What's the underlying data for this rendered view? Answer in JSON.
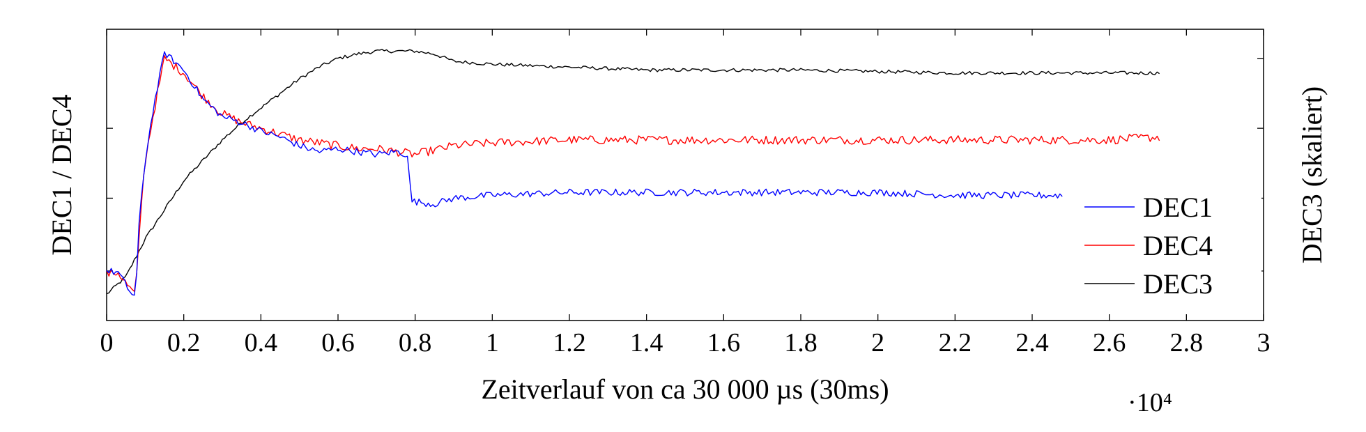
{
  "chart_data": {
    "type": "line",
    "title": "",
    "xlabel": "Zeitverlauf von ca 30 000 µs (30ms)",
    "ylabel_left": "DEC1 / DEC4",
    "ylabel_right": "DEC3 (skaliert)",
    "x_multiplier": "·10⁴",
    "xlim": [
      0,
      3
    ],
    "ylim": [
      0,
      1
    ],
    "x_ticks": [
      "0",
      "0.2",
      "0.4",
      "0.6",
      "0.8",
      "1",
      "1.2",
      "1.4",
      "1.6",
      "1.8",
      "2",
      "2.2",
      "2.4",
      "2.6",
      "2.8",
      "3"
    ],
    "y_ticks_left": [
      0.17,
      0.42,
      0.66
    ],
    "y_ticks_right": [
      0.17,
      0.42,
      0.66,
      0.9
    ],
    "grid": false,
    "legend_position": "bottom-right",
    "series": [
      {
        "name": "DEC1",
        "color": "#0000ff",
        "points": [
          [
            0,
            0.17
          ],
          [
            0.03,
            0.165
          ],
          [
            0.06,
            0.1
          ],
          [
            0.075,
            0.08
          ],
          [
            0.085,
            0.35
          ],
          [
            0.1,
            0.55
          ],
          [
            0.12,
            0.72
          ],
          [
            0.15,
            0.92
          ],
          [
            0.2,
            0.86
          ],
          [
            0.25,
            0.76
          ],
          [
            0.3,
            0.7
          ],
          [
            0.35,
            0.68
          ],
          [
            0.4,
            0.65
          ],
          [
            0.45,
            0.63
          ],
          [
            0.5,
            0.6
          ],
          [
            0.55,
            0.58
          ],
          [
            0.6,
            0.59
          ],
          [
            0.65,
            0.58
          ],
          [
            0.7,
            0.57
          ],
          [
            0.75,
            0.58
          ],
          [
            0.78,
            0.57
          ],
          [
            0.79,
            0.41
          ],
          [
            0.85,
            0.4
          ],
          [
            0.9,
            0.42
          ],
          [
            1.0,
            0.43
          ],
          [
            1.2,
            0.44
          ],
          [
            1.4,
            0.44
          ],
          [
            1.6,
            0.44
          ],
          [
            1.8,
            0.44
          ],
          [
            2.0,
            0.44
          ],
          [
            2.2,
            0.43
          ],
          [
            2.4,
            0.43
          ],
          [
            2.48,
            0.43
          ]
        ],
        "noise": 0.012
      },
      {
        "name": "DEC4",
        "color": "#ff0000",
        "points": [
          [
            0,
            0.16
          ],
          [
            0.03,
            0.165
          ],
          [
            0.06,
            0.11
          ],
          [
            0.075,
            0.09
          ],
          [
            0.09,
            0.4
          ],
          [
            0.1,
            0.55
          ],
          [
            0.12,
            0.7
          ],
          [
            0.15,
            0.9
          ],
          [
            0.2,
            0.85
          ],
          [
            0.25,
            0.77
          ],
          [
            0.3,
            0.71
          ],
          [
            0.35,
            0.68
          ],
          [
            0.4,
            0.66
          ],
          [
            0.45,
            0.64
          ],
          [
            0.5,
            0.62
          ],
          [
            0.55,
            0.61
          ],
          [
            0.6,
            0.6
          ],
          [
            0.65,
            0.59
          ],
          [
            0.7,
            0.59
          ],
          [
            0.75,
            0.58
          ],
          [
            0.8,
            0.57
          ],
          [
            0.9,
            0.6
          ],
          [
            1.0,
            0.61
          ],
          [
            1.2,
            0.62
          ],
          [
            1.4,
            0.62
          ],
          [
            1.6,
            0.62
          ],
          [
            1.8,
            0.62
          ],
          [
            2.0,
            0.62
          ],
          [
            2.2,
            0.62
          ],
          [
            2.4,
            0.62
          ],
          [
            2.6,
            0.62
          ],
          [
            2.73,
            0.63
          ]
        ],
        "noise": 0.015
      },
      {
        "name": "DEC3",
        "color": "#000000",
        "points": [
          [
            0,
            0.09
          ],
          [
            0.05,
            0.15
          ],
          [
            0.1,
            0.28
          ],
          [
            0.15,
            0.38
          ],
          [
            0.2,
            0.48
          ],
          [
            0.25,
            0.55
          ],
          [
            0.3,
            0.62
          ],
          [
            0.35,
            0.68
          ],
          [
            0.4,
            0.73
          ],
          [
            0.45,
            0.78
          ],
          [
            0.5,
            0.83
          ],
          [
            0.55,
            0.87
          ],
          [
            0.6,
            0.9
          ],
          [
            0.65,
            0.915
          ],
          [
            0.7,
            0.925
          ],
          [
            0.75,
            0.925
          ],
          [
            0.8,
            0.925
          ],
          [
            0.85,
            0.915
          ],
          [
            0.9,
            0.89
          ],
          [
            1.0,
            0.88
          ],
          [
            1.2,
            0.87
          ],
          [
            1.4,
            0.86
          ],
          [
            1.6,
            0.86
          ],
          [
            1.8,
            0.86
          ],
          [
            2.0,
            0.855
          ],
          [
            2.2,
            0.85
          ],
          [
            2.4,
            0.85
          ],
          [
            2.6,
            0.85
          ],
          [
            2.73,
            0.85
          ]
        ],
        "noise": 0.006
      }
    ]
  }
}
